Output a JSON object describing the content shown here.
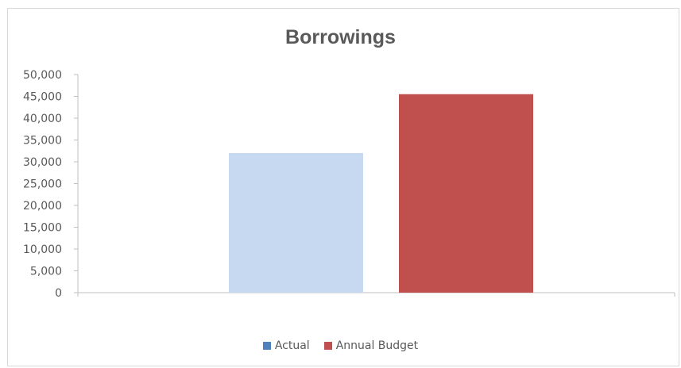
{
  "chart_data": {
    "type": "bar",
    "title": "Borrowings",
    "xlabel": "",
    "ylabel": "",
    "ylim": [
      0,
      50000
    ],
    "ytick_step": 5000,
    "yticks": [
      "0",
      "5,000",
      "10,000",
      "15,000",
      "20,000",
      "25,000",
      "30,000",
      "35,000",
      "40,000",
      "45,000",
      "50,000"
    ],
    "grid": false,
    "legend_position": "bottom",
    "series": [
      {
        "name": "Actual",
        "value": 32000,
        "color": "#c6d9f1"
      },
      {
        "name": "Annual Budget",
        "value": 45500,
        "color": "#c0504d"
      }
    ],
    "legend_colors": [
      "#4f81bd",
      "#c0504d"
    ]
  }
}
